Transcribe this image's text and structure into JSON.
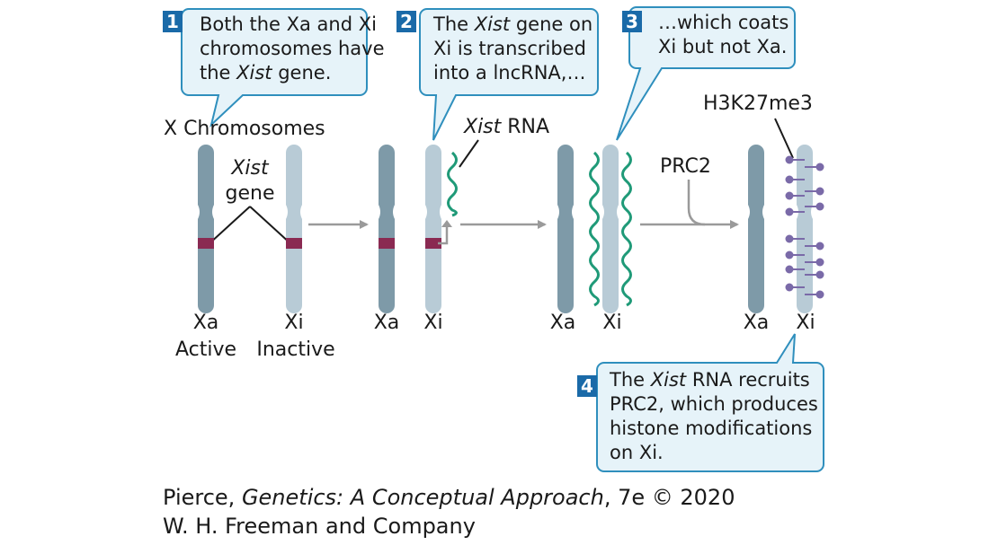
{
  "steps": [
    {
      "number": "1",
      "lines": [
        [
          "Both the Xa and Xi"
        ],
        [
          "chromosomes have"
        ],
        [
          "the ",
          {
            "i": "Xist"
          },
          " gene."
        ]
      ]
    },
    {
      "number": "2",
      "lines": [
        [
          "The ",
          {
            "i": "Xist"
          },
          " gene on"
        ],
        [
          "Xi is transcribed"
        ],
        [
          "into a lncRNA,…"
        ]
      ]
    },
    {
      "number": "3",
      "lines": [
        [
          "…which coats"
        ],
        [
          "Xi but not Xa."
        ]
      ]
    },
    {
      "number": "4",
      "lines": [
        [
          "The ",
          {
            "i": "Xist"
          },
          " RNA recruits"
        ],
        [
          "PRC2, which produces"
        ],
        [
          "histone modifications"
        ],
        [
          "on Xi."
        ]
      ]
    }
  ],
  "labels": {
    "x_chromosomes": "X Chromosomes",
    "xist_gene_line1": "Xist",
    "xist_gene_line2": "gene",
    "xist_rna_italic": "Xist",
    "xist_rna_rest": " RNA",
    "prc2": "PRC2",
    "h3k27me3": "H3K27me3",
    "xa": "Xa",
    "xi": "Xi",
    "active": "Active",
    "inactive": "Inactive"
  },
  "credit": {
    "line1_prefix": "Pierce, ",
    "line1_title": "Genetics: A Conceptual Approach",
    "line1_suffix": ", 7e © 2020",
    "line2": "W. H. Freeman and Company"
  },
  "colors": {
    "xa_chromosome": "#7e9aa8",
    "xi_chromosome": "#b8cbd6",
    "xist_gene_band": "#8a2a52",
    "xist_rna": "#1f9a78",
    "methyl_mark": "#7a6aa8",
    "arrow": "#9a9a9a",
    "callout_fill": "#e6f3f9",
    "callout_stroke": "#2f8fbd",
    "step_badge": "#1a6aa8"
  }
}
